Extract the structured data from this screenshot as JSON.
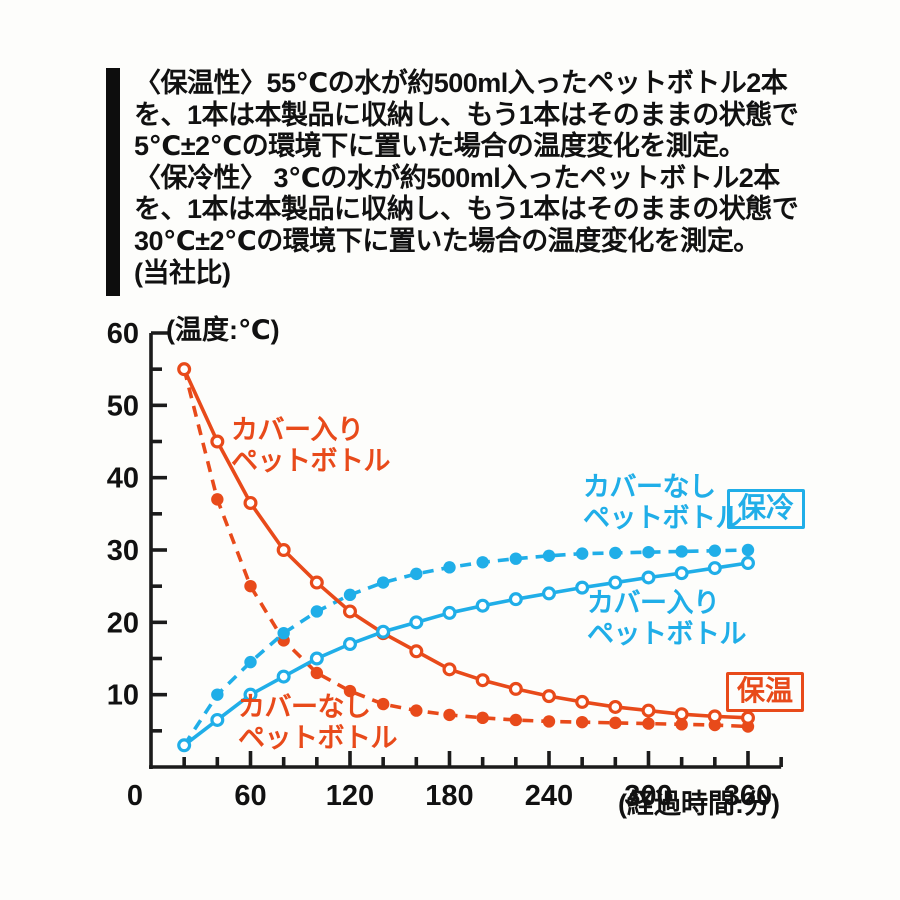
{
  "note": {
    "lines": [
      "〈保温性〉55℃の水が約500ml入ったペットボトル2本",
      "を、1本は本製品に収納し、もう1本はそのままの状態で",
      "5℃±2℃の環境下に置いた場合の温度変化を測定。",
      "〈保冷性〉 3℃の水が約500ml入ったペットボトル2本",
      "を、1本は本製品に収納し、もう1本はそのままの状態で",
      "30℃±2℃の環境下に置いた場合の温度変化を測定。",
      "(当社比)"
    ]
  },
  "chart_data": {
    "type": "line",
    "y_axis_label": "(温度:℃)",
    "x_axis_label": "(経過時間:分)",
    "xlim": [
      0,
      380
    ],
    "ylim": [
      0,
      60
    ],
    "x_ticks_major": [
      0,
      60,
      120,
      180,
      240,
      300,
      360
    ],
    "x_tick_minor_step": 20,
    "y_ticks_major": [
      10,
      20,
      30,
      40,
      50,
      60
    ],
    "y_tick_minor_step": 5,
    "grid": false,
    "x": [
      20,
      40,
      60,
      80,
      100,
      120,
      140,
      160,
      180,
      200,
      220,
      240,
      260,
      280,
      300,
      320,
      340,
      360
    ],
    "series": [
      {
        "id": "warm-covered",
        "name": "保温 カバー入りペットボトル",
        "color": "#e84a1a",
        "line": "solid",
        "marker": "open",
        "skip_first_marker": false,
        "values": [
          55,
          45,
          36.5,
          30,
          25.5,
          21.5,
          18.5,
          16,
          13.5,
          12,
          10.8,
          9.8,
          9,
          8.3,
          7.8,
          7.3,
          7,
          6.8
        ]
      },
      {
        "id": "warm-bare",
        "name": "保温 カバーなしペットボトル",
        "color": "#e84a1a",
        "line": "dashed",
        "marker": "filled",
        "skip_first_marker": true,
        "values": [
          55,
          37,
          25,
          17.5,
          13,
          10.5,
          8.7,
          7.8,
          7.2,
          6.8,
          6.5,
          6.3,
          6.2,
          6.1,
          6,
          5.9,
          5.8,
          5.6
        ]
      },
      {
        "id": "cold-covered",
        "name": "保冷 カバー入りペットボトル",
        "color": "#20aee8",
        "line": "solid",
        "marker": "open",
        "skip_first_marker": false,
        "values": [
          3,
          6.5,
          10,
          12.5,
          15,
          17,
          18.7,
          20,
          21.3,
          22.3,
          23.2,
          24,
          24.8,
          25.5,
          26.2,
          26.8,
          27.5,
          28.2
        ]
      },
      {
        "id": "cold-bare",
        "name": "保冷 カバーなしペットボトル",
        "color": "#20aee8",
        "line": "dashed",
        "marker": "filled",
        "skip_first_marker": true,
        "values": [
          3,
          10,
          14.5,
          18.5,
          21.5,
          23.8,
          25.5,
          26.7,
          27.6,
          28.3,
          28.8,
          29.2,
          29.5,
          29.6,
          29.7,
          29.8,
          29.9,
          30
        ]
      }
    ],
    "labels": {
      "warm_covered": [
        "カバー入り",
        "ペットボトル"
      ],
      "warm_bare": [
        "カバーなし",
        "ペットボトル"
      ],
      "cold_bare": [
        "カバーなし",
        "ペットボトル"
      ],
      "cold_covered": [
        "カバー入り",
        "ペットボトル"
      ]
    },
    "badges": {
      "cold": "保冷",
      "warm": "保温"
    },
    "colors": {
      "warm": "#e84a1a",
      "cold": "#20aee8",
      "axis": "#1b1b1b"
    }
  }
}
